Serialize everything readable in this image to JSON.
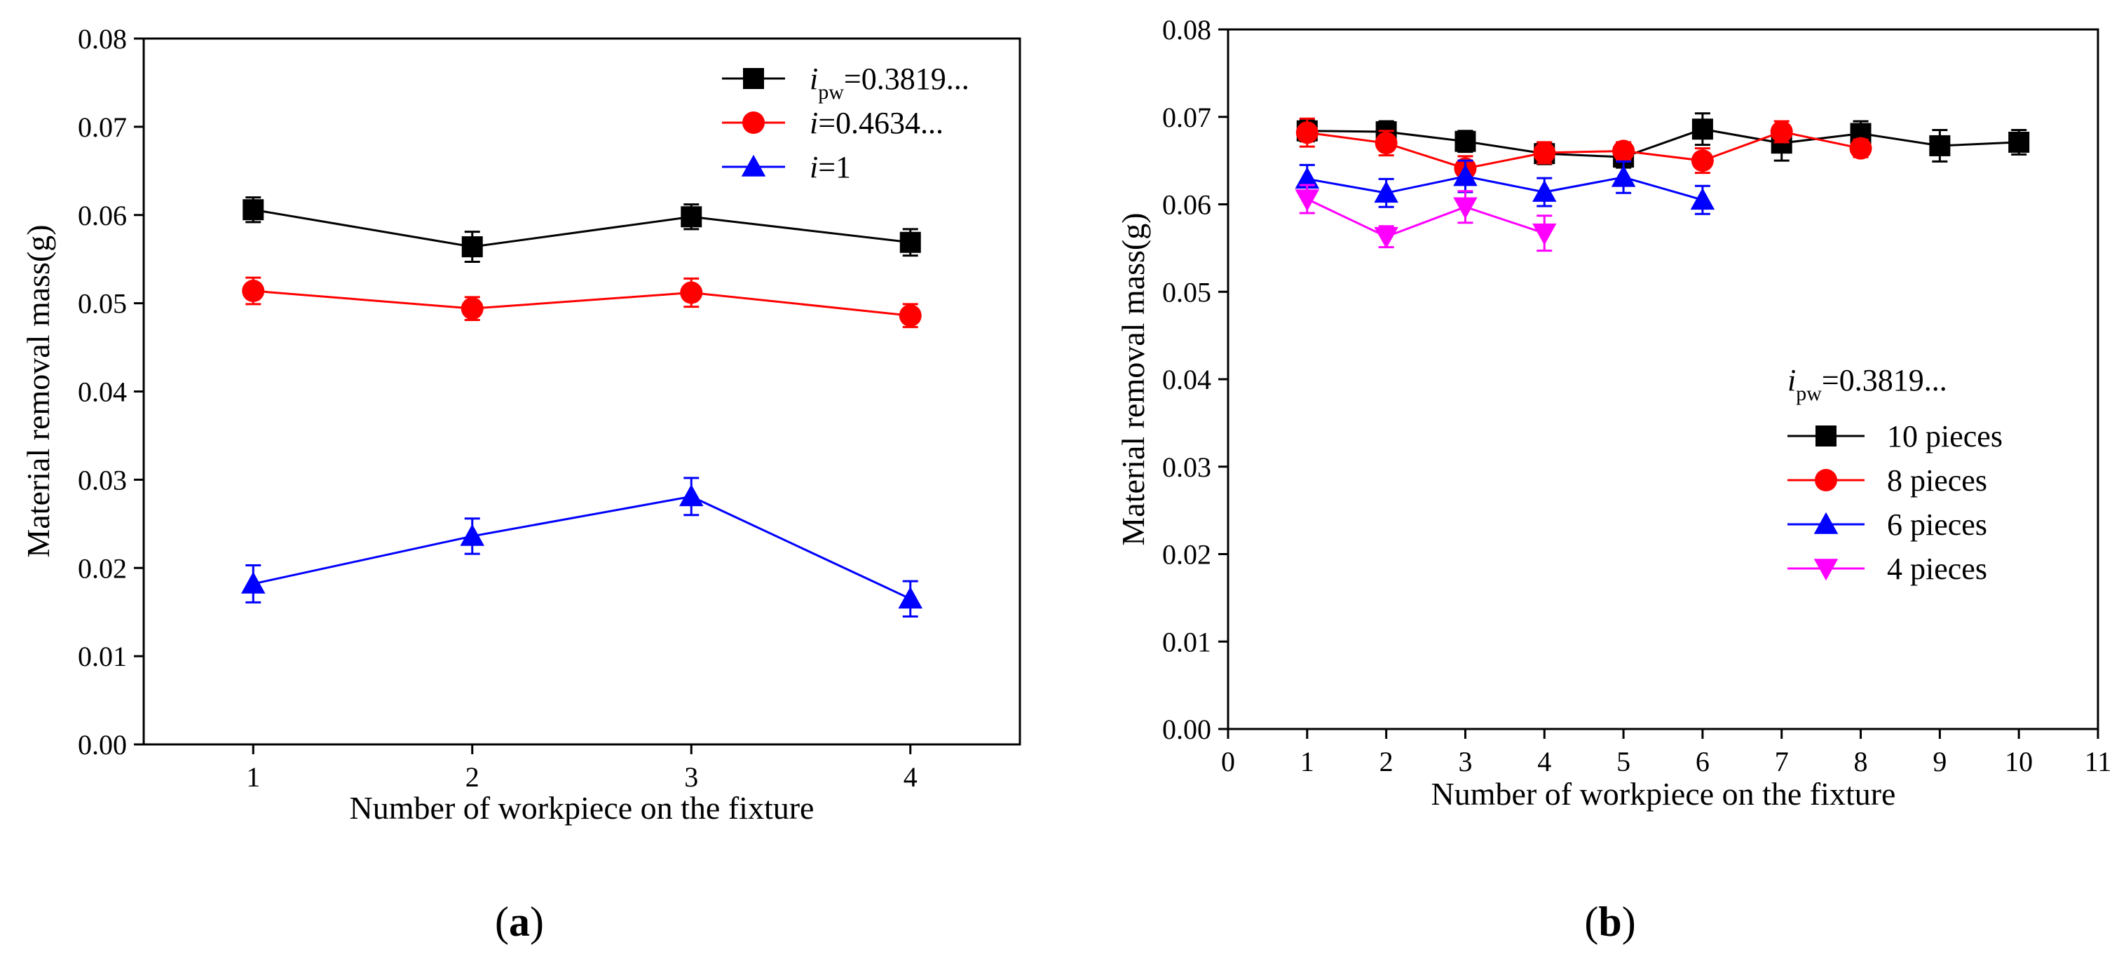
{
  "chart_data": [
    {
      "type": "line",
      "panel_label": "a",
      "xlabel": "Number of workpiece on the fixture",
      "ylabel": "Material removal mass(g)",
      "xlim": [
        0.5,
        4.5
      ],
      "ylim": [
        0,
        0.08
      ],
      "x_ticks": [
        1,
        2,
        3,
        4
      ],
      "y_ticks": [
        0.0,
        0.01,
        0.02,
        0.03,
        0.04,
        0.05,
        0.06,
        0.07,
        0.08
      ],
      "y_tick_labels": [
        "0.00",
        "0.01",
        "0.02",
        "0.03",
        "0.04",
        "0.05",
        "0.06",
        "0.07",
        "0.08"
      ],
      "grid": false,
      "legend_position": "top-right",
      "series": [
        {
          "label_main": "i",
          "label_sub": "pw",
          "label_rest": "=0.3819...",
          "color": "#000000",
          "marker": "square",
          "x": [
            1,
            2,
            3,
            4
          ],
          "values": [
            0.0606,
            0.0564,
            0.0598,
            0.0569
          ],
          "errors": [
            0.0014,
            0.0017,
            0.0014,
            0.0015
          ]
        },
        {
          "label_main": "i",
          "label_sub": "",
          "label_rest": "=0.4634...",
          "color": "#ff0000",
          "marker": "circle",
          "x": [
            1,
            2,
            3,
            4
          ],
          "values": [
            0.0514,
            0.0494,
            0.0512,
            0.0486
          ],
          "errors": [
            0.0015,
            0.0013,
            0.0016,
            0.0013
          ]
        },
        {
          "label_main": "i",
          "label_sub": "",
          "label_rest": "=1",
          "color": "#0000ff",
          "marker": "triangle-up",
          "x": [
            1,
            2,
            3,
            4
          ],
          "values": [
            0.0182,
            0.0236,
            0.0281,
            0.0165
          ],
          "errors": [
            0.0021,
            0.002,
            0.0021,
            0.002
          ]
        }
      ]
    },
    {
      "type": "line",
      "panel_label": "b",
      "xlabel": "Number of workpiece on the fixture",
      "ylabel": "Material removal mass(g)",
      "xlim": [
        0,
        11
      ],
      "ylim": [
        0,
        0.08
      ],
      "x_ticks": [
        0,
        1,
        2,
        3,
        4,
        5,
        6,
        7,
        8,
        9,
        10,
        11
      ],
      "y_ticks": [
        0.0,
        0.01,
        0.02,
        0.03,
        0.04,
        0.05,
        0.06,
        0.07,
        0.08
      ],
      "y_tick_labels": [
        "0.00",
        "0.01",
        "0.02",
        "0.03",
        "0.04",
        "0.05",
        "0.06",
        "0.07",
        "0.08"
      ],
      "grid": false,
      "legend_position": "lower-right",
      "legend_title_main": "i",
      "legend_title_sub": "pw",
      "legend_title_rest": "=0.3819...",
      "series": [
        {
          "name": "10 pieces",
          "color": "#000000",
          "marker": "square",
          "x": [
            1,
            2,
            3,
            4,
            5,
            6,
            7,
            8,
            9,
            10
          ],
          "values": [
            0.0684,
            0.0683,
            0.0672,
            0.0658,
            0.0654,
            0.0686,
            0.067,
            0.0681,
            0.0667,
            0.0671
          ],
          "errors": [
            0.0012,
            0.0012,
            0.0012,
            0.0012,
            0.0012,
            0.0018,
            0.002,
            0.0014,
            0.0018,
            0.0014
          ]
        },
        {
          "name": "8 pieces",
          "color": "#ff0000",
          "marker": "circle",
          "x": [
            1,
            2,
            3,
            4,
            5,
            6,
            7,
            8
          ],
          "values": [
            0.0682,
            0.067,
            0.0641,
            0.0659,
            0.0661,
            0.065,
            0.0683,
            0.0664
          ],
          "errors": [
            0.0016,
            0.0014,
            0.0014,
            0.0012,
            0.001,
            0.0014,
            0.0012,
            0.001
          ]
        },
        {
          "name": "6 pieces",
          "color": "#0000ff",
          "marker": "triangle-up",
          "x": [
            1,
            2,
            3,
            4,
            5,
            6
          ],
          "values": [
            0.0629,
            0.0613,
            0.0632,
            0.0614,
            0.0631,
            0.0605
          ],
          "errors": [
            0.0016,
            0.0016,
            0.0018,
            0.0016,
            0.0018,
            0.0016
          ]
        },
        {
          "name": "4 pieces",
          "color": "#ff00ff",
          "marker": "triangle-down",
          "x": [
            1,
            2,
            3,
            4
          ],
          "values": [
            0.0606,
            0.0563,
            0.0597,
            0.0567
          ],
          "errors": [
            0.0016,
            0.0012,
            0.0018,
            0.002
          ]
        }
      ]
    }
  ]
}
